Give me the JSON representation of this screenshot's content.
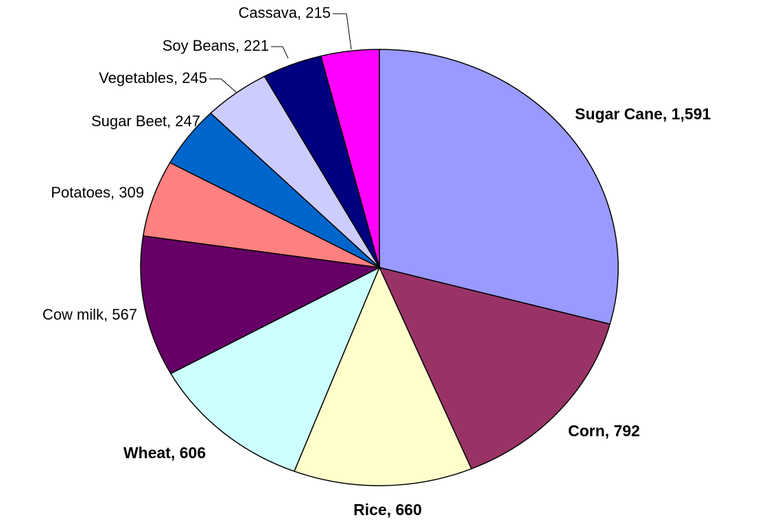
{
  "chart_data": {
    "type": "pie",
    "categories": [
      "Sugar Cane",
      "Corn",
      "Rice",
      "Wheat",
      "Cow milk",
      "Potatoes",
      "Sugar Beet",
      "Vegetables",
      "Soy Beans",
      "Cassava"
    ],
    "values": [
      1591,
      792,
      660,
      606,
      567,
      309,
      247,
      245,
      221,
      215
    ],
    "value_labels": [
      "1,591",
      "792",
      "660",
      "606",
      "567",
      "309",
      "247",
      "245",
      "221",
      "215"
    ],
    "colors": [
      "#9999ff",
      "#993366",
      "#ffffcc",
      "#ccffff",
      "#660066",
      "#ff8080",
      "#0066cc",
      "#ccccff",
      "#000080",
      "#ff00ff"
    ],
    "bold_labels": [
      true,
      true,
      true,
      true,
      false,
      false,
      false,
      false,
      false,
      false
    ]
  }
}
